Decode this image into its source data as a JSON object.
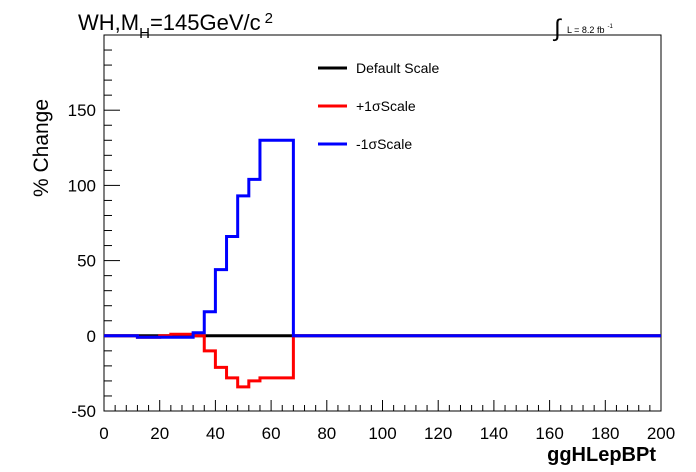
{
  "chart_data": {
    "type": "line",
    "title": {
      "main": "WH,M",
      "sub": "H",
      "rest": "=145GeV/c",
      "sup": "2"
    },
    "lumi": {
      "integral": "∫",
      "text": "L = 8.2 fb",
      "sup": "-1"
    },
    "ylabel": "% Change",
    "xlabel": "ggHLepBPt",
    "xlim": [
      0,
      200
    ],
    "ylim": [
      -50,
      200
    ],
    "xticks": [
      0,
      20,
      40,
      60,
      80,
      100,
      120,
      140,
      160,
      180,
      200
    ],
    "yticks": [
      -50,
      0,
      50,
      100,
      150
    ],
    "grid": false,
    "legend_position": "top-center",
    "bin_width": 4,
    "series": [
      {
        "name": "Default Scale",
        "color": "#000000",
        "x": [
          0,
          200
        ],
        "values": [
          0,
          0
        ]
      },
      {
        "name": "+1σScale",
        "color": "#ff0000",
        "x": [
          0,
          12,
          16,
          20,
          24,
          28,
          32,
          36,
          40,
          44,
          48,
          52,
          56,
          60,
          64,
          68,
          200
        ],
        "values": [
          0,
          -1,
          -1,
          0,
          1,
          1,
          0,
          -10,
          -21,
          -28,
          -34,
          -30,
          -28,
          -28,
          -28,
          0,
          0
        ]
      },
      {
        "name": "-1σScale",
        "color": "#0000ff",
        "x": [
          0,
          12,
          16,
          20,
          24,
          28,
          32,
          36,
          40,
          44,
          48,
          52,
          56,
          60,
          64,
          68,
          200
        ],
        "values": [
          0,
          -1,
          -1,
          -1,
          -1,
          -1,
          2,
          16,
          44,
          66,
          93,
          104,
          130,
          130,
          130,
          0,
          0
        ]
      }
    ]
  }
}
